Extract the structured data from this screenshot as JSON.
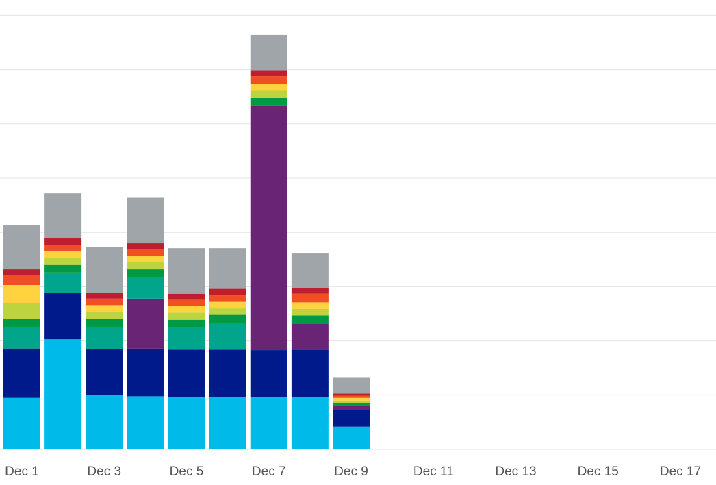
{
  "chart_data": {
    "type": "bar",
    "stacked": true,
    "categories": [
      "Dec 1",
      "Dec 2",
      "Dec 3",
      "Dec 4",
      "Dec 5",
      "Dec 6",
      "Dec 7",
      "Dec 8",
      "Dec 9",
      "Dec 10",
      "Dec 11",
      "Dec 12",
      "Dec 13",
      "Dec 14",
      "Dec 15",
      "Dec 16",
      "Dec 17"
    ],
    "tick_labels": [
      "Dec 1",
      "Dec 3",
      "Dec 5",
      "Dec 7",
      "Dec 9",
      "Dec 11",
      "Dec 13",
      "Dec 15",
      "Dec 17"
    ],
    "ylim": [
      0,
      8
    ],
    "grid": true,
    "legend": "none",
    "series": [
      {
        "color": "#00bbea",
        "values": [
          0.95,
          2.03,
          1.0,
          0.98,
          0.97,
          0.97,
          0.96,
          0.97,
          0.42,
          0,
          0,
          0,
          0,
          0,
          0,
          0,
          0
        ]
      },
      {
        "color": "#001a8c",
        "values": [
          0.91,
          0.85,
          0.85,
          0.88,
          0.87,
          0.87,
          0.87,
          0.87,
          0.3,
          0,
          0,
          0,
          0,
          0,
          0,
          0,
          0
        ]
      },
      {
        "color": "#6a2475",
        "values": [
          0,
          0,
          0,
          0.92,
          0,
          0,
          4.5,
          0.48,
          0.08,
          0,
          0,
          0,
          0,
          0,
          0,
          0,
          0
        ]
      },
      {
        "color": "#00a58c",
        "values": [
          0.4,
          0.38,
          0.4,
          0.4,
          0.4,
          0.49,
          0,
          0,
          0,
          0,
          0,
          0,
          0,
          0,
          0,
          0,
          0
        ]
      },
      {
        "color": "#009a44",
        "values": [
          0.14,
          0.14,
          0.15,
          0.14,
          0.15,
          0.15,
          0.15,
          0.15,
          0.05,
          0,
          0,
          0,
          0,
          0,
          0,
          0,
          0
        ]
      },
      {
        "color": "#bcd43e",
        "values": [
          0.29,
          0.13,
          0.13,
          0.13,
          0.13,
          0.12,
          0.13,
          0.12,
          0.05,
          0,
          0,
          0,
          0,
          0,
          0,
          0,
          0
        ]
      },
      {
        "color": "#ffd23f",
        "values": [
          0.34,
          0.12,
          0.13,
          0.12,
          0.12,
          0.12,
          0.13,
          0.12,
          0.05,
          0,
          0,
          0,
          0,
          0,
          0,
          0,
          0
        ]
      },
      {
        "color": "#f04e23",
        "values": [
          0.18,
          0.12,
          0.12,
          0.12,
          0.12,
          0.12,
          0.14,
          0.16,
          0.04,
          0,
          0,
          0,
          0,
          0,
          0,
          0,
          0
        ]
      },
      {
        "color": "#bf1e2e",
        "values": [
          0.11,
          0.12,
          0.11,
          0.11,
          0.11,
          0.12,
          0.11,
          0.11,
          0.04,
          0,
          0,
          0,
          0,
          0,
          0,
          0,
          0
        ]
      },
      {
        "color": "#a0a5a9",
        "values": [
          0.82,
          0.83,
          0.84,
          0.84,
          0.84,
          0.75,
          0.65,
          0.63,
          0.29,
          0,
          0,
          0,
          0,
          0,
          0,
          0,
          0
        ]
      }
    ]
  }
}
